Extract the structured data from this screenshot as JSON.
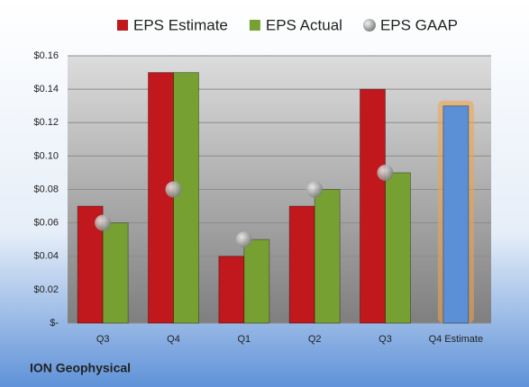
{
  "chart_data": {
    "type": "bar",
    "categories": [
      "Q3",
      "Q4",
      "Q1",
      "Q2",
      "Q3",
      "Q4 Estimate"
    ],
    "series": [
      {
        "name": "EPS Estimate",
        "color": "#c0181c",
        "values": [
          0.07,
          0.15,
          0.04,
          0.07,
          0.14,
          0.13
        ],
        "point_colors": [
          "#c0181c",
          "#c0181c",
          "#c0181c",
          "#c0181c",
          "#c0181c",
          "#5b8fd6"
        ]
      },
      {
        "name": "EPS Actual",
        "color": "#76a132",
        "values": [
          0.06,
          0.15,
          0.05,
          0.08,
          0.09,
          null
        ]
      },
      {
        "name": "EPS GAAP",
        "color": "#a6a6a6",
        "marker": "circle",
        "values": [
          0.06,
          0.08,
          0.05,
          0.08,
          0.09,
          null
        ]
      }
    ],
    "ylim": [
      0,
      0.16
    ],
    "yticks": [
      {
        "value": 0,
        "label": "$-"
      },
      {
        "value": 0.02,
        "label": "$0.02"
      },
      {
        "value": 0.04,
        "label": "$0.04"
      },
      {
        "value": 0.06,
        "label": "$0.06"
      },
      {
        "value": 0.08,
        "label": "$0.08"
      },
      {
        "value": 0.1,
        "label": "$0.10"
      },
      {
        "value": 0.12,
        "label": "$0.12"
      },
      {
        "value": 0.14,
        "label": "$0.14"
      },
      {
        "value": 0.16,
        "label": "$0.16"
      }
    ],
    "grid": true,
    "legend": "top",
    "footer": "ION Geophysical"
  }
}
